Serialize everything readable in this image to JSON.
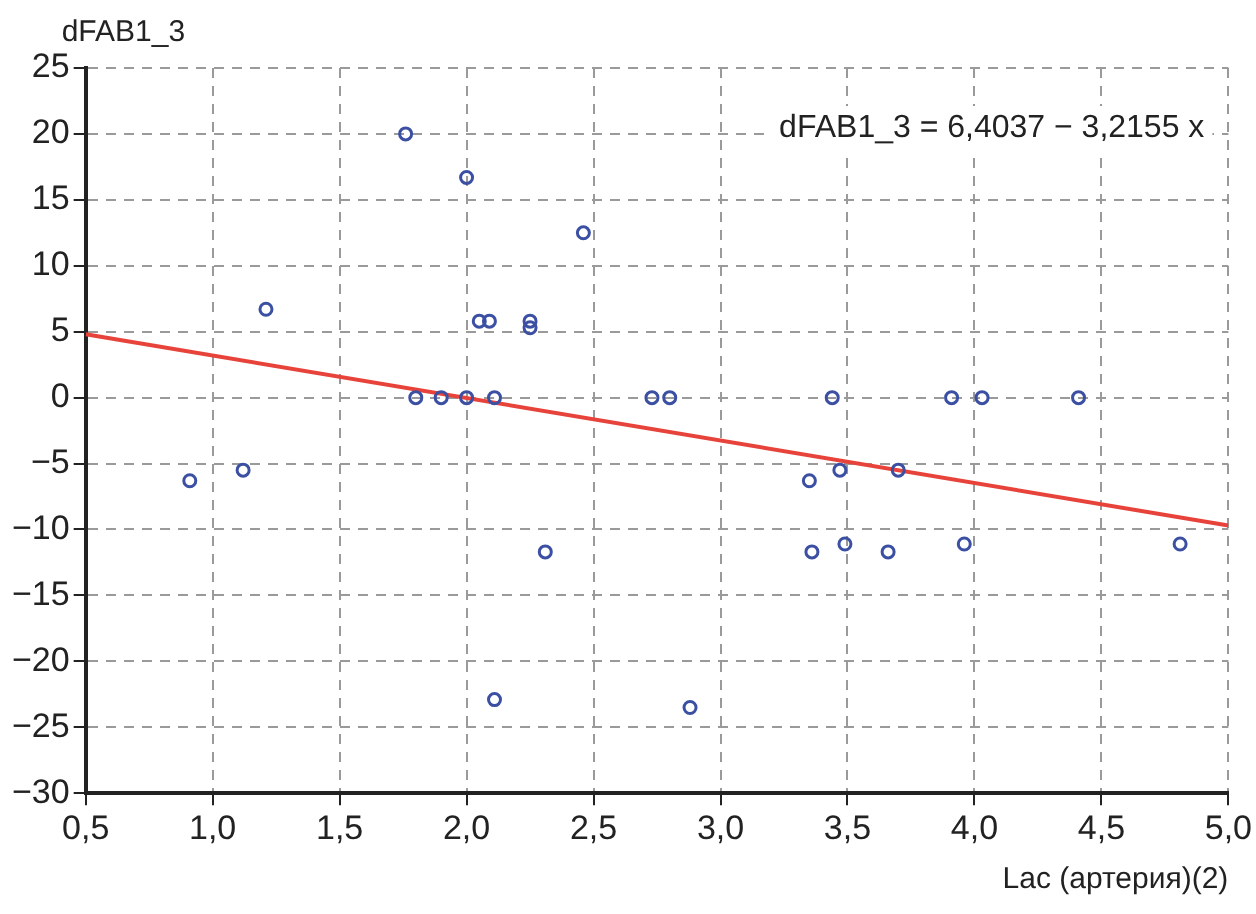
{
  "chart_data": {
    "type": "scatter",
    "ylabel": "dFAB1_3",
    "xlabel": "Lac (артерия)(2)",
    "annotations": [
      "dFAB1_3 = 6,4037 − 3,2155 x"
    ],
    "series": [
      {
        "color": "#3b4fa3",
        "marker": "circle",
        "x": [
          0.91,
          1.12,
          1.21,
          1.76,
          1.8,
          1.9,
          2.0,
          2.0,
          2.05,
          2.09,
          2.11,
          2.11,
          2.25,
          2.25,
          2.31,
          2.46,
          2.73,
          2.8,
          2.88,
          3.35,
          3.36,
          3.44,
          3.47,
          3.49,
          3.66,
          3.7,
          3.91,
          3.96,
          4.03,
          4.41,
          4.81
        ],
        "values": [
          -6.3,
          -5.5,
          6.7,
          20,
          0,
          0,
          0,
          16.7,
          5.8,
          5.8,
          0,
          -22.9,
          5.8,
          5.3,
          -11.7,
          12.5,
          0,
          0,
          -23.5,
          -6.3,
          -11.7,
          0,
          -5.5,
          -11.1,
          -11.7,
          -5.5,
          0,
          -11.1,
          0,
          0,
          -11.1
        ]
      },
      {
        "type": "line",
        "color": "#e8433a",
        "marker": "none",
        "line_style": "solid",
        "x": [
          0.5,
          5.0
        ],
        "values": [
          4.8,
          -9.7
        ]
      }
    ],
    "xlim": [
      0.5,
      5.0
    ],
    "xticks": [
      {
        "value": 0.5,
        "label": "0,5"
      },
      {
        "value": 1.0,
        "label": "1,0"
      },
      {
        "value": 1.5,
        "label": "1,5"
      },
      {
        "value": 2.0,
        "label": "2,0"
      },
      {
        "value": 2.5,
        "label": "2,5"
      },
      {
        "value": 3.0,
        "label": "3,0"
      },
      {
        "value": 3.5,
        "label": "3,5"
      },
      {
        "value": 4.0,
        "label": "4,0"
      },
      {
        "value": 4.5,
        "label": "4,5"
      },
      {
        "value": 5.0,
        "label": "5,0"
      }
    ],
    "ylim": [
      -30,
      25
    ],
    "yticks": [
      {
        "value": -30,
        "label": "−30"
      },
      {
        "value": -25,
        "label": "−25"
      },
      {
        "value": -20,
        "label": "−20"
      },
      {
        "value": -15,
        "label": "−15"
      },
      {
        "value": -10,
        "label": "−10"
      },
      {
        "value": -5,
        "label": "−5"
      },
      0,
      5,
      10,
      15,
      20,
      25
    ],
    "grid": true,
    "legend": false
  }
}
